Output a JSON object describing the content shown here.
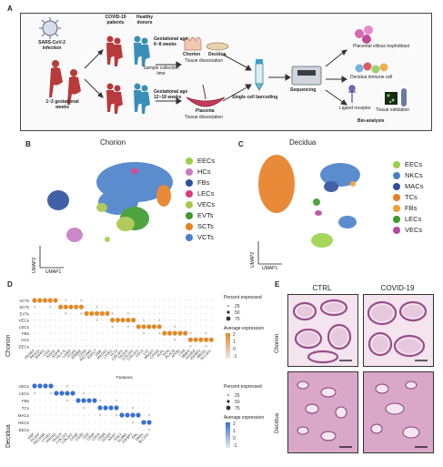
{
  "panels": {
    "a": "A",
    "b": "B",
    "c": "C",
    "d": "D",
    "e": "E"
  },
  "workflow": {
    "virus_label": "SARS-CoV-2\ninfection",
    "covid_label": "COVID-19\npatients",
    "healthy_label": "Healthy\ndonors",
    "gest_weeks_label": "1~3 gestational\nweeks",
    "gest_age_top": "Gestational age\n6~8 weeks",
    "gest_age_bottom": "Gestational age\n12~16 weeks",
    "sample_collection": "Sample collection\ntime",
    "chorion": "Chorion",
    "decidua": "Decidua",
    "tissue_dissociation": "Tissue dissociation",
    "placenta": "Placenta",
    "placenta_dissociation": "Tissue dissociation",
    "single_cell": "Single cell barcoding",
    "sequencing": "Sequencing",
    "villous": "Placental villous trophoblast",
    "decidua_immune": "Decidua immune cell",
    "ligand_receptor": "Ligand receptor",
    "tissue_validation": "Tissue validation",
    "bioanalysis": "Bio-analysis"
  },
  "umap_chorion": {
    "title": "Chorion",
    "axis_x": "UMAP1",
    "axis_y": "UMAP2",
    "legend": [
      {
        "label": "EECs",
        "color": "#9bd14a"
      },
      {
        "label": "HCs",
        "color": "#c77cc4"
      },
      {
        "label": "FBs",
        "color": "#2e4f9c"
      },
      {
        "label": "LECs",
        "color": "#d8397f"
      },
      {
        "label": "VECs",
        "color": "#a8c64a"
      },
      {
        "label": "EVTs",
        "color": "#3c9a2d"
      },
      {
        "label": "SCTs",
        "color": "#e67e22"
      },
      {
        "label": "VCTs",
        "color": "#4a80c8"
      }
    ]
  },
  "umap_decidua": {
    "title": "Decidua",
    "axis_x": "UMAP1",
    "axis_y": "UMAP2",
    "legend": [
      {
        "label": "EECs",
        "color": "#9bd14a"
      },
      {
        "label": "NKCs",
        "color": "#4a80c8"
      },
      {
        "label": "MACs",
        "color": "#2e4f9c"
      },
      {
        "label": "TCs",
        "color": "#e67e22"
      },
      {
        "label": "FBs",
        "color": "#f0a030"
      },
      {
        "label": "LECs",
        "color": "#3c9a2d"
      },
      {
        "label": "VECs",
        "color": "#b34aa0"
      }
    ]
  },
  "dotplot_chorion": {
    "side_label": "Chorion",
    "rows": [
      "VCTs",
      "SCTs",
      "EVTs",
      "VECs",
      "LECs",
      "FBs",
      "HCs",
      "EECs"
    ],
    "genes": [
      "PAGE4",
      "PEG10",
      "PARP1",
      "CGA",
      "KISS1",
      "EGFR",
      "HLA-G",
      "LAIR2",
      "ITGA5",
      "ERBB2",
      "CD34",
      "PECAM1",
      "EGFL7",
      "VWF",
      "PROX1",
      "LYVE1",
      "FLT4",
      "COL3A1",
      "TAGLN",
      "COL1A2",
      "COL1A1",
      "CD14",
      "LYZ",
      "MS4A7",
      "CD163",
      "ALPL",
      "DCN",
      "PLAC8",
      "APOD",
      "CD9",
      "MMP2",
      "HAND2",
      "IGFBP1",
      "MEIS1",
      "SLC2A1"
    ],
    "pct_title": "Percent expressed",
    "pct_values": [
      "25",
      "50",
      "75"
    ],
    "avg_title": "Average expression",
    "avg_ticks": [
      "2",
      "1",
      "0",
      "-1"
    ],
    "accent": "#e08a2c"
  },
  "dotplot_decidua": {
    "side_label": "Decidua",
    "rows": [
      "VECs",
      "LECs",
      "FBs",
      "TCs",
      "MACs",
      "NKCs",
      "EECs"
    ],
    "genes": [
      "VWF",
      "PLVAP",
      "PECAM1",
      "LYVE1",
      "PROX1",
      "TAGLN",
      "COL1A1",
      "COL3A1",
      "CD3E",
      "CD3D",
      "CD2",
      "CD69",
      "CD14",
      "CD68",
      "CD163",
      "NKG7",
      "GNLY",
      "KLRB1",
      "IGFBP1",
      "PRL",
      "DKK1",
      "SLC2A1"
    ],
    "features_label": "Features",
    "pct_title": "Percent expressed",
    "pct_values": [
      "25",
      "50",
      "75"
    ],
    "avg_title": "Average expression",
    "avg_ticks": [
      "2",
      "1",
      "0",
      "-1"
    ],
    "accent": "#3a6fd0"
  },
  "histology": {
    "col_ctrl": "CTRL",
    "col_covid": "COVID-19",
    "row_chorion": "Chorion",
    "row_decidua": "Decidua"
  }
}
